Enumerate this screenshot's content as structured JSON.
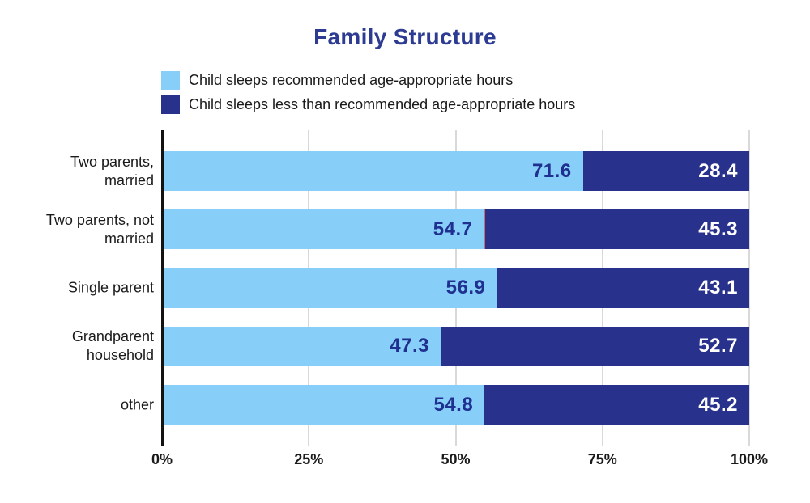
{
  "chart_data": {
    "type": "bar",
    "stacked": true,
    "orientation": "horizontal",
    "title": "Family Structure",
    "categories": [
      "Two parents,\nmarried",
      "Two parents, not\nmarried",
      "Single parent",
      "Grandparent\nhousehold",
      "other"
    ],
    "series": [
      {
        "name": "Child sleeps recommended age-appropriate hours",
        "color": "#87CEF8",
        "value_label_color": "#1F3090",
        "values": [
          71.6,
          54.7,
          56.9,
          47.3,
          54.8
        ]
      },
      {
        "name": "Child sleeps less than recommended age-appropriate hours",
        "color": "#28328C",
        "value_label_color": "#FFFFFF",
        "values": [
          28.4,
          45.3,
          43.1,
          52.7,
          45.2
        ]
      }
    ],
    "x_ticks": [
      {
        "label": "0%",
        "value": 0
      },
      {
        "label": "25%",
        "value": 25
      },
      {
        "label": "50%",
        "value": 50
      },
      {
        "label": "75%",
        "value": 75
      },
      {
        "label": "100%",
        "value": 100
      }
    ],
    "x_range": [
      0,
      100
    ],
    "legend_position": "top-left",
    "grid": "vertical"
  },
  "styles": {
    "title_color": "#2D3C92",
    "gridline_color": "#D9D9D9",
    "axis_color": "#121212",
    "text_color": "#1A1A1A",
    "row2_segment_divider_color": "#C9706F"
  }
}
